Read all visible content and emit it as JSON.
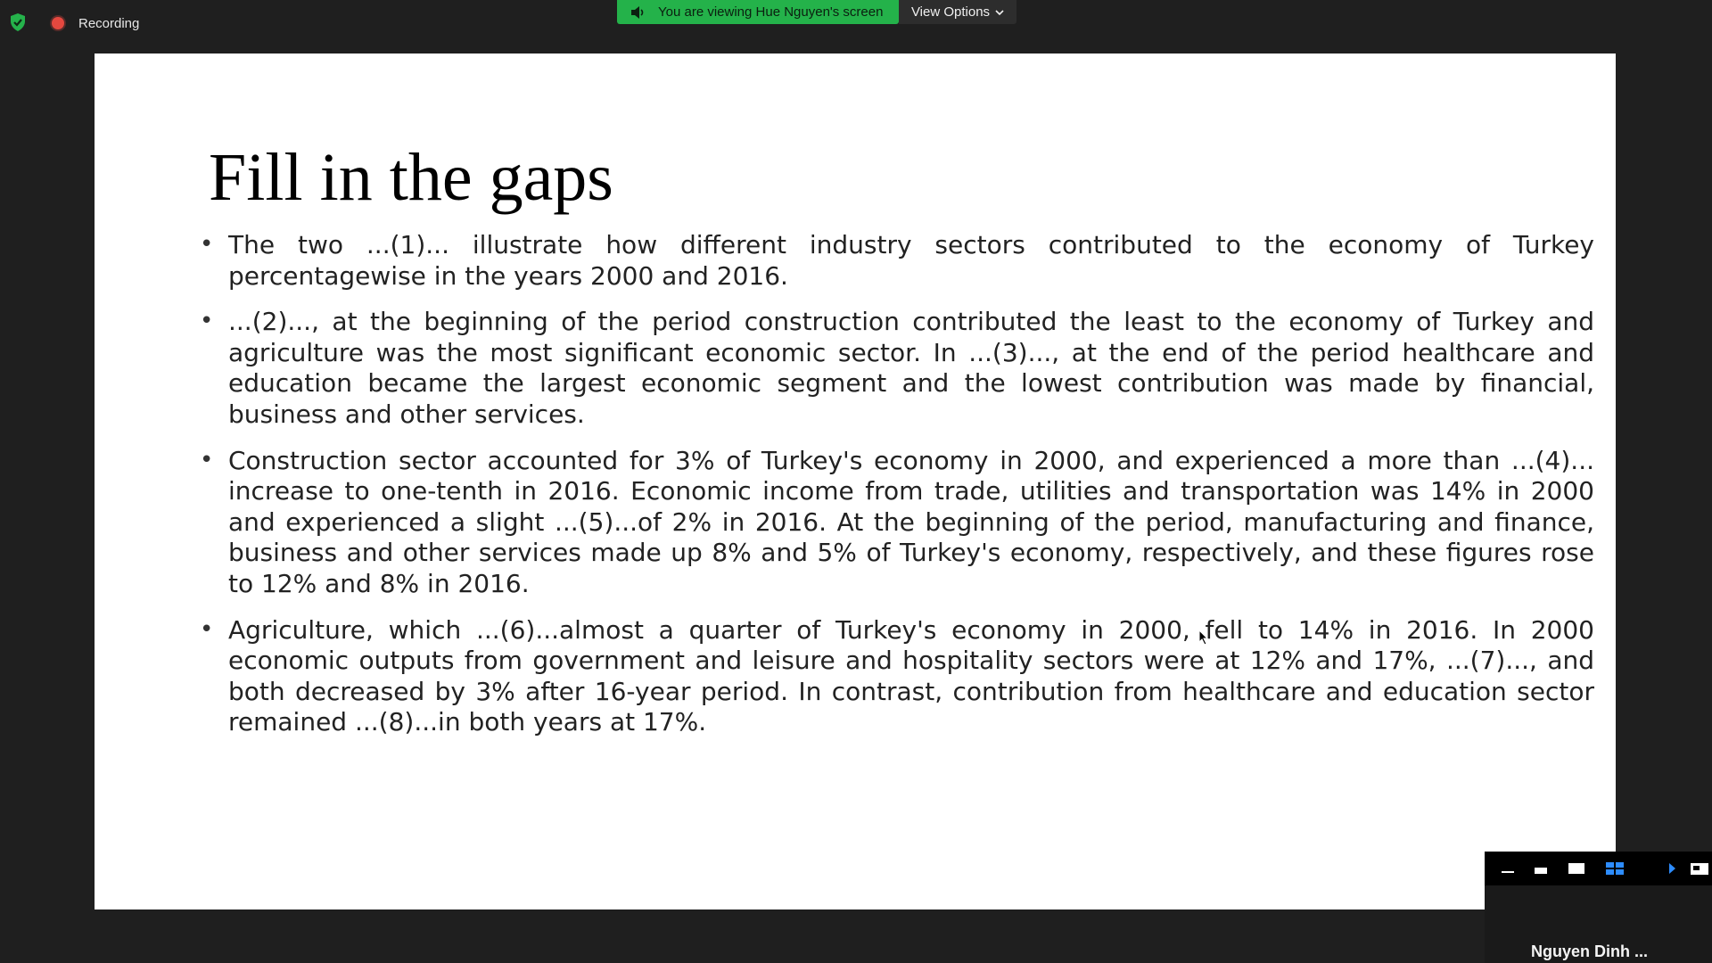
{
  "topbar": {
    "recording_label": "Recording",
    "share_banner_text": "You are viewing Hue Nguyen's screen",
    "view_options_label": "View Options",
    "colors": {
      "banner": "#24b24a",
      "recording_dot": "#e5483f",
      "shield": "#25b24b"
    }
  },
  "slide": {
    "title": "Fill in the gaps",
    "bullets": [
      "The two ...(1)... illustrate how different industry sectors contributed to the economy of Turkey percentagewise in the years 2000 and 2016.",
      "...(2)..., at the beginning of the period construction contributed the least to the economy of Turkey and agriculture was the most significant economic sector. In ...(3)..., at the end of the period healthcare and education became the largest economic segment and the lowest contribution was made by financial, business and other services.",
      "Construction sector accounted for 3% of Turkey's economy in 2000, and experienced a more than ...(4)... increase to one-tenth in 2016. Economic income from trade, utilities and transportation was 14% in 2000 and experienced a slight ...(5)...of 2% in 2016. At the beginning of the period, manufacturing and finance, business and other services made up 8% and 5% of Turkey's economy, respectively, and these figures rose to 12% and 8% in 2016.",
      "Agriculture, which ...(6)...almost a quarter of Turkey's economy in 2000, fell to 14% in 2016. In 2000 economic outputs from government and leisure and hospitality sectors were at 12% and 17%, ...(7)..., and both decreased by 3% after 16-year period. In contrast, contribution from healthcare and education sector remained ...(8)...in both years at 17%."
    ],
    "bullet_symbol": "•"
  },
  "participant_panel": {
    "name": "Nguyen Dinh ...",
    "toolbar_icons": [
      "minimize-icon",
      "strip-view-icon",
      "single-view-icon",
      "grid-view-icon",
      "next-page-icon",
      "exit-panel-icon"
    ]
  }
}
